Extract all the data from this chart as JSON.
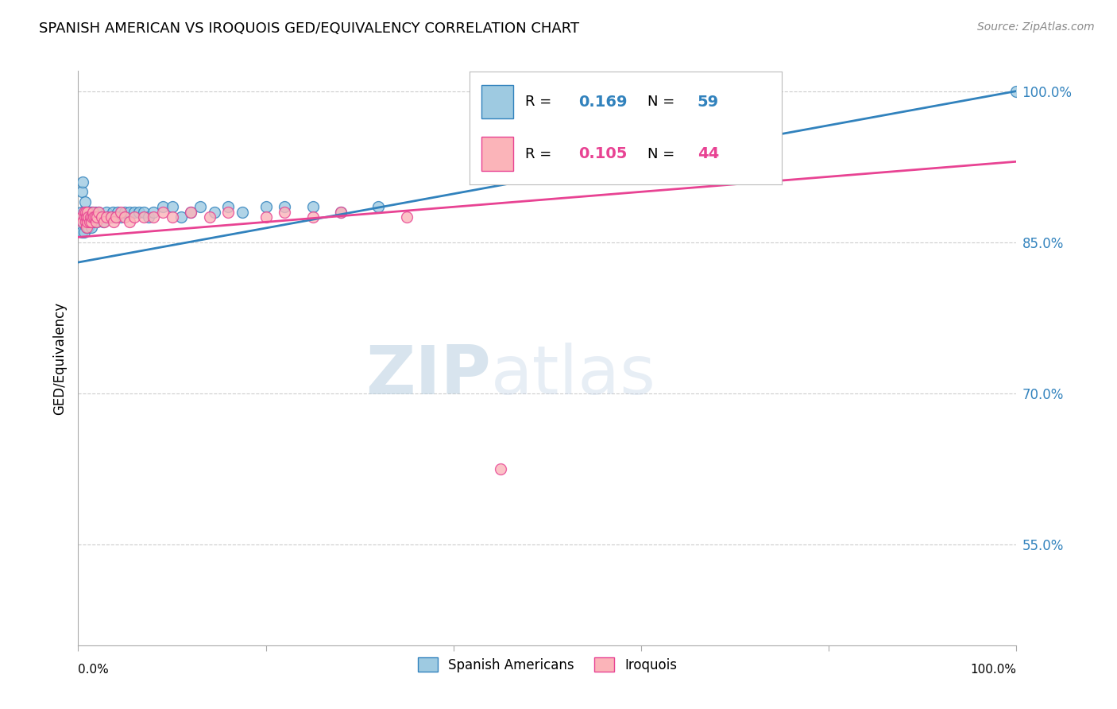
{
  "title": "SPANISH AMERICAN VS IROQUOIS GED/EQUIVALENCY CORRELATION CHART",
  "source": "Source: ZipAtlas.com",
  "ylabel": "GED/Equivalency",
  "xlim": [
    0.0,
    1.0
  ],
  "ylim": [
    0.45,
    1.02
  ],
  "yticks": [
    0.55,
    0.7,
    0.85,
    1.0
  ],
  "ytick_labels": [
    "55.0%",
    "70.0%",
    "85.0%",
    "100.0%"
  ],
  "blue_R": "0.169",
  "blue_N": "59",
  "pink_R": "0.105",
  "pink_N": "44",
  "blue_color": "#9ecae1",
  "pink_color": "#fbb4b9",
  "blue_line_color": "#3182bd",
  "pink_line_color": "#e84393",
  "legend_label_blue": "Spanish Americans",
  "legend_label_pink": "Iroquois",
  "background_color": "#ffffff",
  "blue_x": [
    0.002,
    0.003,
    0.004,
    0.005,
    0.005,
    0.006,
    0.006,
    0.007,
    0.007,
    0.008,
    0.008,
    0.009,
    0.009,
    0.009,
    0.01,
    0.01,
    0.01,
    0.011,
    0.011,
    0.012,
    0.012,
    0.013,
    0.013,
    0.014,
    0.015,
    0.015,
    0.016,
    0.017,
    0.018,
    0.019,
    0.02,
    0.022,
    0.023,
    0.025,
    0.026,
    0.028,
    0.03,
    0.032,
    0.035,
    0.038,
    0.04,
    0.042,
    0.045,
    0.048,
    0.05,
    0.055,
    0.06,
    0.065,
    0.07,
    0.075,
    0.08,
    0.09,
    0.1,
    0.115,
    0.13,
    0.15,
    0.17,
    0.2,
    1.0
  ],
  "blue_y": [
    0.875,
    0.87,
    0.865,
    0.88,
    0.855,
    0.87,
    0.86,
    0.87,
    0.88,
    0.875,
    0.865,
    0.87,
    0.875,
    0.86,
    0.88,
    0.87,
    0.865,
    0.875,
    0.86,
    0.875,
    0.865,
    0.87,
    0.875,
    0.86,
    0.875,
    0.865,
    0.87,
    0.875,
    0.86,
    0.875,
    0.865,
    0.87,
    0.88,
    0.87,
    0.865,
    0.875,
    0.87,
    0.875,
    0.865,
    0.87,
    0.875,
    0.88,
    0.89,
    0.875,
    0.895,
    0.875,
    0.88,
    0.885,
    0.87,
    0.875,
    0.885,
    0.88,
    0.875,
    0.895,
    0.895,
    0.89,
    0.89,
    0.895,
    1.0
  ],
  "pink_x": [
    0.003,
    0.005,
    0.006,
    0.007,
    0.007,
    0.008,
    0.008,
    0.009,
    0.009,
    0.01,
    0.01,
    0.011,
    0.012,
    0.013,
    0.014,
    0.015,
    0.016,
    0.017,
    0.018,
    0.019,
    0.02,
    0.022,
    0.023,
    0.025,
    0.028,
    0.03,
    0.033,
    0.036,
    0.04,
    0.045,
    0.05,
    0.055,
    0.06,
    0.065,
    0.07,
    0.075,
    0.08,
    0.09,
    0.1,
    0.12,
    0.14,
    0.16,
    0.2,
    0.45
  ],
  "pink_y": [
    0.875,
    0.87,
    0.875,
    0.865,
    0.87,
    0.88,
    0.87,
    0.86,
    0.875,
    0.875,
    0.87,
    0.865,
    0.875,
    0.87,
    0.875,
    0.87,
    0.88,
    0.875,
    0.87,
    0.875,
    0.87,
    0.89,
    0.875,
    0.885,
    0.87,
    0.88,
    0.875,
    0.87,
    0.88,
    0.875,
    0.875,
    0.87,
    0.875,
    0.88,
    0.875,
    0.875,
    0.875,
    0.88,
    0.875,
    0.875,
    0.88,
    0.875,
    0.875,
    0.625
  ]
}
